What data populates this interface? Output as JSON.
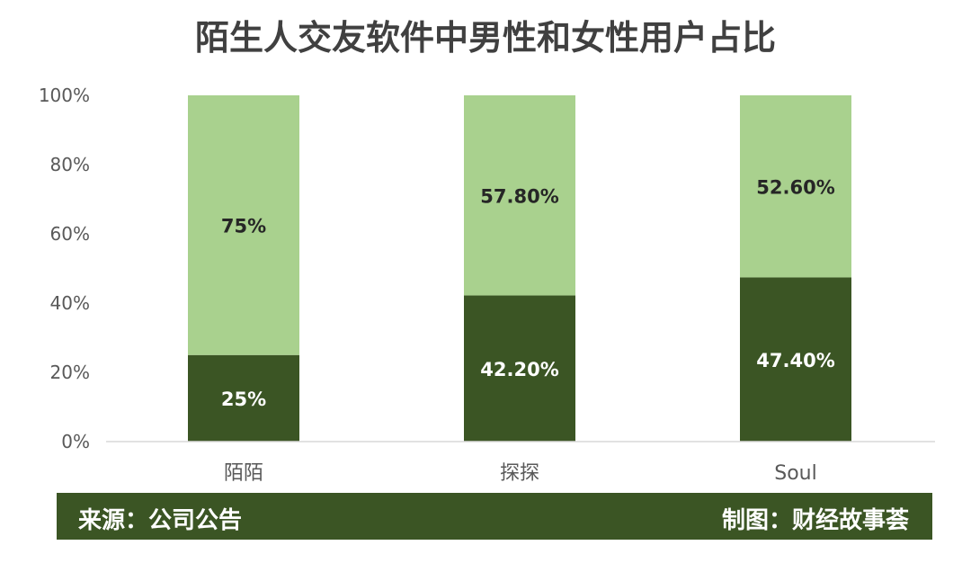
{
  "chart_data": {
    "type": "bar",
    "stacked": true,
    "title": "陌生人交友软件中男性和女性用户占比",
    "categories": [
      "陌陌",
      "探探",
      "Soul"
    ],
    "series": [
      {
        "values": [
          25,
          42.2,
          47.4
        ],
        "labels": [
          "25%",
          "42.20%",
          "47.40%"
        ],
        "color": "#3b5524"
      },
      {
        "values": [
          75,
          57.8,
          52.6
        ],
        "labels": [
          "75%",
          "57.80%",
          "52.60%"
        ],
        "color": "#a9d18e"
      }
    ],
    "y_ticks": [
      "0%",
      "20%",
      "40%",
      "60%",
      "80%",
      "100%"
    ],
    "ylim": [
      0,
      100
    ],
    "grid": false,
    "legend": "none"
  },
  "footer": {
    "source": "来源：公司公告",
    "credit": "制图：财经故事荟",
    "background": "#3b5524"
  }
}
